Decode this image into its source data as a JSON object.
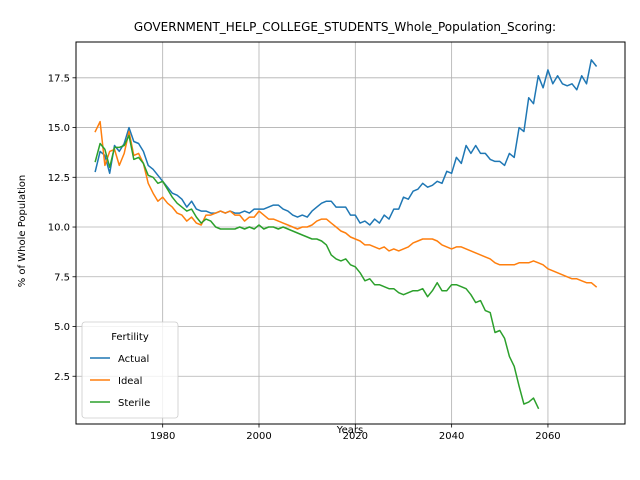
{
  "chart_data": {
    "type": "line",
    "title": "GOVERNMENT_HELP_COLLEGE_STUDENTS_Whole_Population_Scoring:",
    "xlabel": "Years",
    "ylabel": "% of Whole Population",
    "xlim": [
      1962,
      2076
    ],
    "ylim": [
      0.1,
      19.3
    ],
    "xticks": [
      1980,
      2000,
      2020,
      2040,
      2060
    ],
    "yticks": [
      2.5,
      5.0,
      7.5,
      10.0,
      12.5,
      15.0,
      17.5
    ],
    "ytick_labels": [
      "2.5",
      "5.0",
      "7.5",
      "10.0",
      "12.5",
      "15.0",
      "17.5"
    ],
    "grid": true,
    "legend": {
      "title": "Fertility",
      "placement": "lower-left"
    },
    "series": [
      {
        "name": "Actual",
        "color": "#1f77b4",
        "x": [
          1966,
          1967,
          1968,
          1969,
          1970,
          1971,
          1972,
          1973,
          1974,
          1975,
          1976,
          1977,
          1978,
          1979,
          1980,
          1981,
          1982,
          1983,
          1984,
          1985,
          1986,
          1987,
          1988,
          1989,
          1990,
          1991,
          1992,
          1993,
          1994,
          1995,
          1996,
          1997,
          1998,
          1999,
          2000,
          2001,
          2002,
          2003,
          2004,
          2005,
          2006,
          2007,
          2008,
          2009,
          2010,
          2011,
          2012,
          2013,
          2014,
          2015,
          2016,
          2017,
          2018,
          2019,
          2020,
          2021,
          2022,
          2023,
          2024,
          2025,
          2026,
          2027,
          2028,
          2029,
          2030,
          2031,
          2032,
          2033,
          2034,
          2035,
          2036,
          2037,
          2038,
          2039,
          2040,
          2041,
          2042,
          2043,
          2044,
          2045,
          2046,
          2047,
          2048,
          2049,
          2050,
          2051,
          2052,
          2053,
          2054,
          2055,
          2056,
          2057,
          2058,
          2059,
          2060,
          2061,
          2062,
          2063,
          2064,
          2065,
          2066,
          2067,
          2068,
          2069,
          2070
        ],
        "values": [
          12.8,
          13.8,
          13.6,
          12.7,
          14.1,
          13.8,
          14.2,
          15.0,
          14.3,
          14.2,
          13.8,
          13.1,
          12.9,
          12.6,
          12.3,
          12.0,
          11.7,
          11.6,
          11.4,
          11.0,
          11.3,
          10.9,
          10.8,
          10.8,
          10.7,
          10.7,
          10.8,
          10.7,
          10.8,
          10.7,
          10.7,
          10.8,
          10.7,
          10.9,
          10.9,
          10.9,
          11.0,
          11.1,
          11.1,
          10.9,
          10.8,
          10.6,
          10.5,
          10.6,
          10.5,
          10.8,
          11.0,
          11.2,
          11.3,
          11.3,
          11.0,
          11.0,
          11.0,
          10.6,
          10.6,
          10.2,
          10.3,
          10.1,
          10.4,
          10.2,
          10.6,
          10.4,
          10.9,
          10.9,
          11.5,
          11.4,
          11.8,
          11.9,
          12.2,
          12.0,
          12.1,
          12.3,
          12.2,
          12.8,
          12.7,
          13.5,
          13.2,
          14.1,
          13.7,
          14.1,
          13.7,
          13.7,
          13.4,
          13.3,
          13.3,
          13.1,
          13.7,
          13.5,
          15.0,
          14.8,
          16.5,
          16.2,
          17.6,
          17.0,
          17.9,
          17.2,
          17.6,
          17.2,
          17.1,
          17.2,
          16.9,
          17.6,
          17.2,
          18.4,
          18.1
        ]
      },
      {
        "name": "Ideal",
        "color": "#ff7f0e",
        "x": [
          1966,
          1967,
          1968,
          1969,
          1970,
          1971,
          1972,
          1973,
          1974,
          1975,
          1976,
          1977,
          1978,
          1979,
          1980,
          1981,
          1982,
          1983,
          1984,
          1985,
          1986,
          1987,
          1988,
          1989,
          1990,
          1991,
          1992,
          1993,
          1994,
          1995,
          1996,
          1997,
          1998,
          1999,
          2000,
          2001,
          2002,
          2003,
          2004,
          2005,
          2006,
          2007,
          2008,
          2009,
          2010,
          2011,
          2012,
          2013,
          2014,
          2015,
          2016,
          2017,
          2018,
          2019,
          2020,
          2021,
          2022,
          2023,
          2024,
          2025,
          2026,
          2027,
          2028,
          2029,
          2030,
          2031,
          2032,
          2033,
          2034,
          2035,
          2036,
          2037,
          2038,
          2039,
          2040,
          2041,
          2042,
          2043,
          2044,
          2045,
          2046,
          2047,
          2048,
          2049,
          2050,
          2051,
          2052,
          2053,
          2054,
          2055,
          2056,
          2057,
          2058,
          2059,
          2060,
          2061,
          2062,
          2063,
          2064,
          2065,
          2066,
          2067,
          2068,
          2069,
          2070
        ],
        "values": [
          14.8,
          15.3,
          13.1,
          13.8,
          13.9,
          13.1,
          13.7,
          14.8,
          13.6,
          13.7,
          13.2,
          12.2,
          11.7,
          11.3,
          11.5,
          11.2,
          11.0,
          10.7,
          10.6,
          10.3,
          10.5,
          10.2,
          10.1,
          10.6,
          10.6,
          10.7,
          10.8,
          10.7,
          10.8,
          10.6,
          10.6,
          10.3,
          10.5,
          10.5,
          10.8,
          10.6,
          10.4,
          10.4,
          10.3,
          10.2,
          10.1,
          10.0,
          9.9,
          10.0,
          10.0,
          10.1,
          10.3,
          10.4,
          10.4,
          10.2,
          10.0,
          9.8,
          9.7,
          9.5,
          9.4,
          9.3,
          9.1,
          9.1,
          9.0,
          8.9,
          9.0,
          8.8,
          8.9,
          8.8,
          8.9,
          9.0,
          9.2,
          9.3,
          9.4,
          9.4,
          9.4,
          9.3,
          9.1,
          9.0,
          8.9,
          9.0,
          9.0,
          8.9,
          8.8,
          8.7,
          8.6,
          8.5,
          8.4,
          8.2,
          8.1,
          8.1,
          8.1,
          8.1,
          8.2,
          8.2,
          8.2,
          8.3,
          8.2,
          8.1,
          7.9,
          7.8,
          7.7,
          7.6,
          7.5,
          7.4,
          7.4,
          7.3,
          7.2,
          7.2,
          7.0
        ]
      },
      {
        "name": "Sterile",
        "color": "#2ca02c",
        "x": [
          1966,
          1967,
          1968,
          1969,
          1970,
          1971,
          1972,
          1973,
          1974,
          1975,
          1976,
          1977,
          1978,
          1979,
          1980,
          1981,
          1982,
          1983,
          1984,
          1985,
          1986,
          1987,
          1988,
          1989,
          1990,
          1991,
          1992,
          1993,
          1994,
          1995,
          1996,
          1997,
          1998,
          1999,
          2000,
          2001,
          2002,
          2003,
          2004,
          2005,
          2006,
          2007,
          2008,
          2009,
          2010,
          2011,
          2012,
          2013,
          2014,
          2015,
          2016,
          2017,
          2018,
          2019,
          2020,
          2021,
          2022,
          2023,
          2024,
          2025,
          2026,
          2027,
          2028,
          2029,
          2030,
          2031,
          2032,
          2033,
          2034,
          2035,
          2036,
          2037,
          2038,
          2039,
          2040,
          2041,
          2042,
          2043,
          2044,
          2045,
          2046,
          2047,
          2048,
          2049,
          2050,
          2051,
          2052,
          2053,
          2054,
          2055,
          2056,
          2057,
          2058
        ],
        "values": [
          13.3,
          14.2,
          13.9,
          13.0,
          14.0,
          14.0,
          14.1,
          14.6,
          13.4,
          13.5,
          13.2,
          12.6,
          12.5,
          12.2,
          12.3,
          11.9,
          11.5,
          11.2,
          11.0,
          10.8,
          10.9,
          10.5,
          10.2,
          10.4,
          10.3,
          10.0,
          9.9,
          9.9,
          9.9,
          9.9,
          10.0,
          9.9,
          10.0,
          9.9,
          10.1,
          9.9,
          10.0,
          10.0,
          9.9,
          10.0,
          9.9,
          9.8,
          9.7,
          9.6,
          9.5,
          9.4,
          9.4,
          9.3,
          9.1,
          8.6,
          8.4,
          8.3,
          8.4,
          8.1,
          8.0,
          7.7,
          7.3,
          7.4,
          7.1,
          7.1,
          7.0,
          6.9,
          6.9,
          6.7,
          6.6,
          6.7,
          6.8,
          6.8,
          6.9,
          6.5,
          6.8,
          7.2,
          6.8,
          6.8,
          7.1,
          7.1,
          7.0,
          6.9,
          6.6,
          6.2,
          6.3,
          5.8,
          5.7,
          4.7,
          4.8,
          4.4,
          3.5,
          3.0,
          2.0,
          1.1,
          1.2,
          1.4,
          0.9
        ]
      }
    ]
  }
}
